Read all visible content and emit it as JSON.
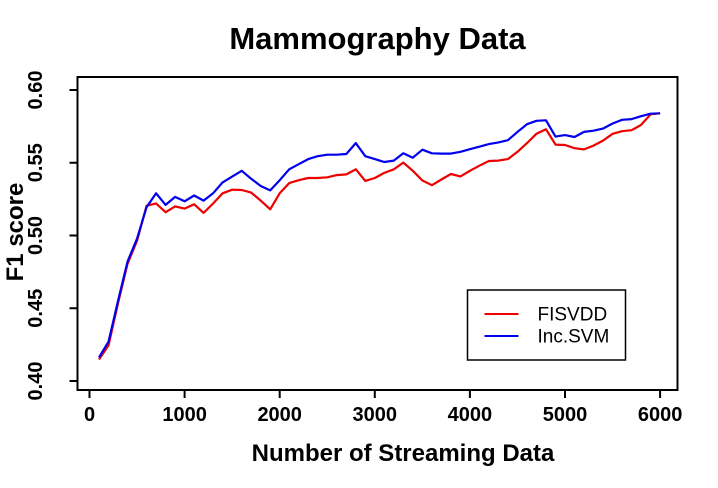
{
  "colors": {
    "background": "#ffffff",
    "axis": "#000000",
    "text": "#000000",
    "fisvdd_red": "#ee0000",
    "incsvm_blue": "#0000ee"
  },
  "legend": {
    "entries": [
      "FISVDD",
      "Inc.SVM"
    ]
  },
  "chart_data": {
    "type": "line",
    "title": "Mammography Data",
    "xlabel": "Number of Streaming Data",
    "ylabel": "F1 score",
    "xlim": [
      0,
      6200
    ],
    "ylim": [
      0.4,
      0.6
    ],
    "x_ticks": [
      0,
      1000,
      2000,
      3000,
      4000,
      5000,
      6000
    ],
    "y_ticks": [
      "0.40",
      "0.45",
      "0.50",
      "0.55",
      "0.60"
    ],
    "grid": false,
    "legend_position": "inside-bottom-right",
    "x": [
      100,
      200,
      300,
      400,
      500,
      600,
      700,
      800,
      900,
      1000,
      1100,
      1200,
      1300,
      1400,
      1500,
      1600,
      1700,
      1800,
      1900,
      2000,
      2100,
      2200,
      2300,
      2400,
      2500,
      2600,
      2700,
      2800,
      2900,
      3000,
      3100,
      3200,
      3300,
      3400,
      3500,
      3600,
      3700,
      3800,
      3900,
      4000,
      4100,
      4200,
      4300,
      4400,
      4500,
      4600,
      4700,
      4800,
      4900,
      5000,
      5100,
      5200,
      5300,
      5400,
      5500,
      5600,
      5700,
      5800,
      5900,
      6000
    ],
    "series": [
      {
        "name": "FISVDD",
        "color": "#ee0000",
        "values": [
          0.4148,
          0.4245,
          0.4535,
          0.4805,
          0.4965,
          0.5205,
          0.522,
          0.516,
          0.52,
          0.5185,
          0.5215,
          0.5155,
          0.522,
          0.529,
          0.5315,
          0.5313,
          0.5295,
          0.524,
          0.518,
          0.529,
          0.536,
          0.538,
          0.5395,
          0.5395,
          0.54,
          0.5415,
          0.542,
          0.5455,
          0.5375,
          0.5395,
          0.543,
          0.5455,
          0.5501,
          0.5445,
          0.5378,
          0.5346,
          0.5385,
          0.5423,
          0.5406,
          0.5445,
          0.548,
          0.5512,
          0.5515,
          0.5525,
          0.5575,
          0.5635,
          0.57,
          0.573,
          0.5625,
          0.5622,
          0.56,
          0.5592,
          0.5618,
          0.5652,
          0.5699,
          0.5717,
          0.5724,
          0.576,
          0.5833,
          0.584
        ]
      },
      {
        "name": "Inc.SVM",
        "color": "#0000ee",
        "values": [
          0.4162,
          0.427,
          0.455,
          0.482,
          0.498,
          0.5195,
          0.529,
          0.521,
          0.5265,
          0.5235,
          0.5275,
          0.524,
          0.529,
          0.5365,
          0.5405,
          0.5445,
          0.539,
          0.534,
          0.531,
          0.538,
          0.5455,
          0.549,
          0.5525,
          0.5545,
          0.5555,
          0.5555,
          0.556,
          0.5635,
          0.5545,
          0.5525,
          0.5505,
          0.5515,
          0.5565,
          0.5535,
          0.559,
          0.5565,
          0.5563,
          0.5563,
          0.5575,
          0.5593,
          0.561,
          0.5628,
          0.564,
          0.5655,
          0.5712,
          0.5765,
          0.5788,
          0.5792,
          0.568,
          0.569,
          0.5677,
          0.5712,
          0.572,
          0.5735,
          0.577,
          0.5795,
          0.58,
          0.582,
          0.5837,
          0.584
        ]
      }
    ]
  }
}
